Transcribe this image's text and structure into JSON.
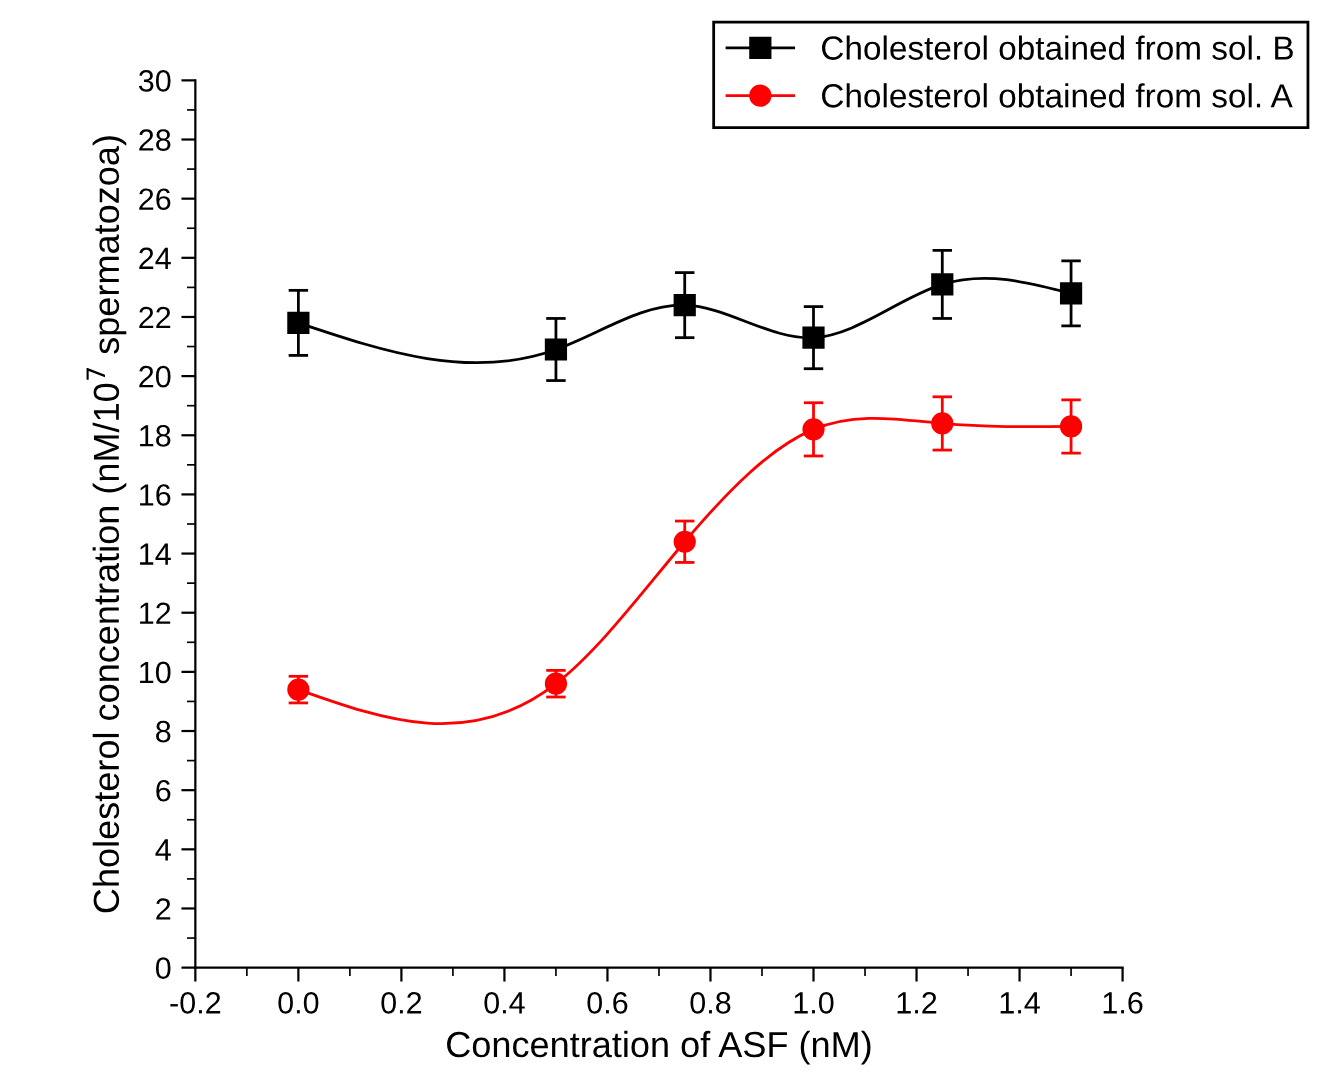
{
  "chart_data": {
    "type": "line",
    "xlabel": "Concentration of ASF (nM)",
    "ylabel": "Cholesterol concentration (nM/10$^{7}$ spermatozoa)",
    "x": [
      0.0,
      0.5,
      0.75,
      1.0,
      1.25,
      1.5
    ],
    "series": [
      {
        "name": "Cholesterol obtained from sol. B",
        "color": "#000000",
        "marker": "square",
        "values": [
          21.8,
          20.9,
          22.4,
          21.3,
          23.1,
          22.8
        ],
        "errors": [
          1.1,
          1.05,
          1.1,
          1.05,
          1.15,
          1.1
        ]
      },
      {
        "name": "Cholesterol obtained from sol. A",
        "color": "#ff0000",
        "marker": "circle",
        "values": [
          9.4,
          9.6,
          14.4,
          18.2,
          18.4,
          18.3
        ],
        "errors": [
          0.45,
          0.45,
          0.7,
          0.9,
          0.9,
          0.9
        ]
      }
    ],
    "xlim": [
      -0.2,
      1.6
    ],
    "xticks": [
      -0.2,
      {
        "value": 0,
        "label": "0.0"
      },
      0.2,
      0.4,
      0.6,
      0.8,
      {
        "value": 1,
        "label": "1.0"
      },
      1.2,
      1.4,
      1.6
    ],
    "ylim": [
      0,
      30
    ],
    "yticks": [
      0,
      2,
      4,
      6,
      8,
      10,
      12,
      14,
      16,
      18,
      20,
      22,
      24,
      26,
      28,
      30
    ],
    "grid": false,
    "legend": "top right",
    "line_style": "solid"
  }
}
